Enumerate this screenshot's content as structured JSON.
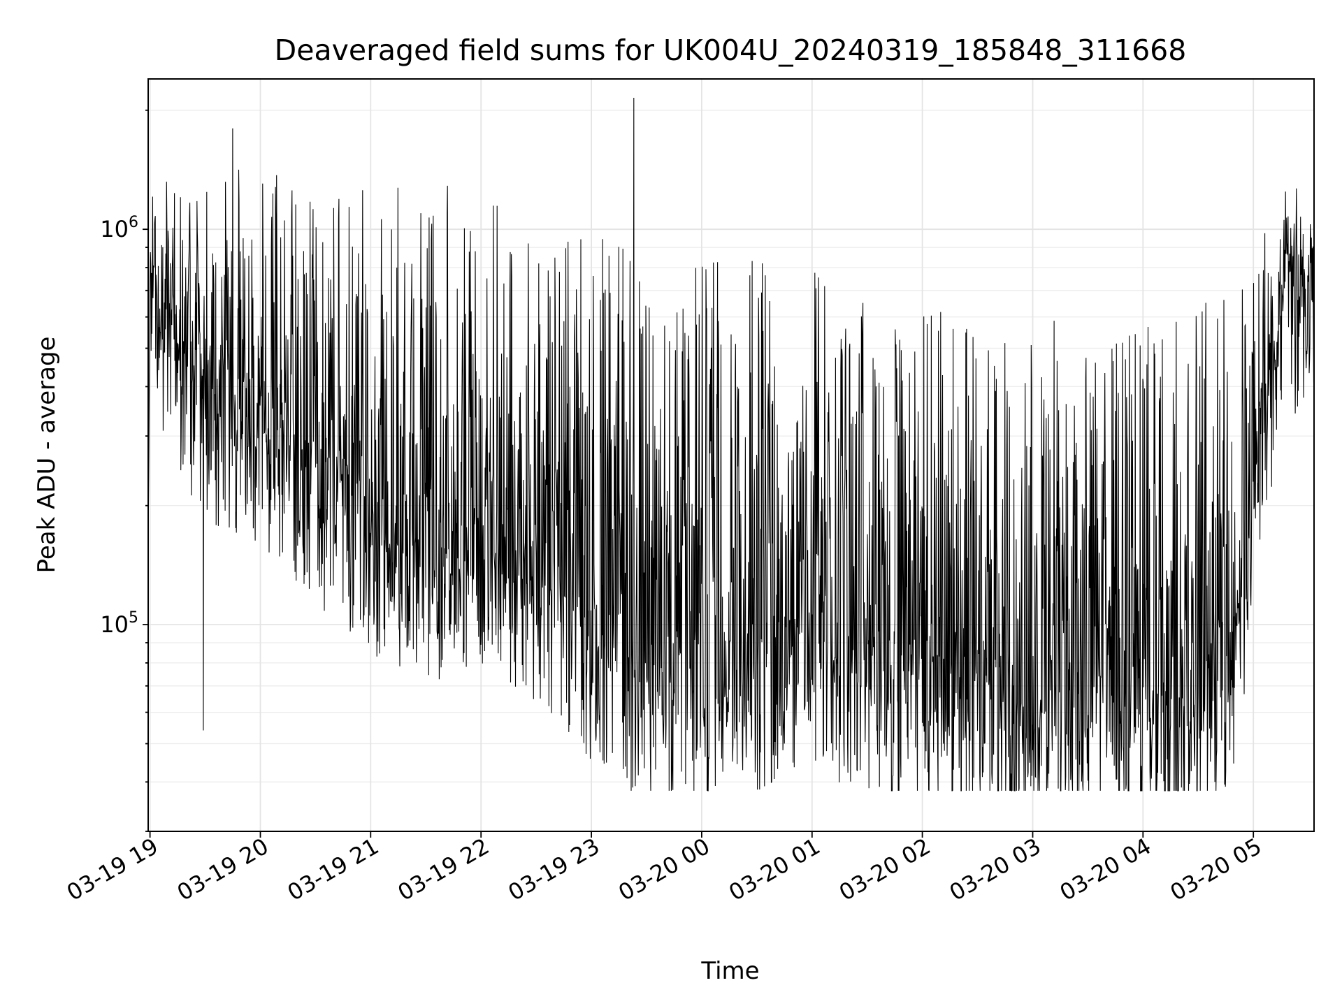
{
  "chart_data": {
    "type": "line",
    "title": "Deaveraged field sums for UK004U_20240319_185848_311668",
    "xlabel": "Time",
    "ylabel": "Peak ADU - average",
    "x_range": [
      "2024-03-19 18:59",
      "2024-03-20 05:33"
    ],
    "ylim": [
      30000,
      2400000
    ],
    "yscale": "log",
    "grid": true,
    "x_ticks": [
      {
        "label": "03-19 19",
        "time": "2024-03-19 19:00"
      },
      {
        "label": "03-19 20",
        "time": "2024-03-19 20:00"
      },
      {
        "label": "03-19 21",
        "time": "2024-03-19 21:00"
      },
      {
        "label": "03-19 22",
        "time": "2024-03-19 22:00"
      },
      {
        "label": "03-19 23",
        "time": "2024-03-19 23:00"
      },
      {
        "label": "03-20 00",
        "time": "2024-03-20 00:00"
      },
      {
        "label": "03-20 01",
        "time": "2024-03-20 01:00"
      },
      {
        "label": "03-20 02",
        "time": "2024-03-20 02:00"
      },
      {
        "label": "03-20 03",
        "time": "2024-03-20 03:00"
      },
      {
        "label": "03-20 04",
        "time": "2024-03-20 04:00"
      },
      {
        "label": "03-20 05",
        "time": "2024-03-20 05:00"
      }
    ],
    "y_ticks": [
      {
        "base": "10",
        "exp": "5",
        "value": 100000
      },
      {
        "base": "10",
        "exp": "6",
        "value": 1000000
      }
    ],
    "series_profile": [
      {
        "time": "2024-03-19 19:00",
        "base": 600000,
        "peak": 1300000
      },
      {
        "time": "2024-03-19 19:30",
        "base": 320000,
        "peak": 1200000
      },
      {
        "time": "2024-03-19 20:00",
        "base": 280000,
        "peak": 1200000
      },
      {
        "time": "2024-03-19 20:30",
        "base": 200000,
        "peak": 1100000
      },
      {
        "time": "2024-03-19 21:00",
        "base": 150000,
        "peak": 1150000
      },
      {
        "time": "2024-03-19 21:30",
        "base": 120000,
        "peak": 1100000
      },
      {
        "time": "2024-03-19 22:00",
        "base": 140000,
        "peak": 1100000
      },
      {
        "time": "2024-03-19 22:30",
        "base": 110000,
        "peak": 900000
      },
      {
        "time": "2024-03-19 23:00",
        "base": 80000,
        "peak": 850000
      },
      {
        "time": "2024-03-19 23:30",
        "base": 62000,
        "peak": 700000
      },
      {
        "time": "2024-03-20 00:00",
        "base": 62000,
        "peak": 700000
      },
      {
        "time": "2024-03-20 00:30",
        "base": 65000,
        "peak": 750000
      },
      {
        "time": "2024-03-20 01:00",
        "base": 80000,
        "peak": 700000
      },
      {
        "time": "2024-03-20 01:30",
        "base": 62000,
        "peak": 600000
      },
      {
        "time": "2024-03-20 02:00",
        "base": 55000,
        "peak": 550000
      },
      {
        "time": "2024-03-20 02:30",
        "base": 55000,
        "peak": 500000
      },
      {
        "time": "2024-03-20 03:00",
        "base": 52000,
        "peak": 500000
      },
      {
        "time": "2024-03-20 03:30",
        "base": 52000,
        "peak": 500000
      },
      {
        "time": "2024-03-20 04:00",
        "base": 52000,
        "peak": 500000
      },
      {
        "time": "2024-03-20 04:30",
        "base": 50000,
        "peak": 550000
      },
      {
        "time": "2024-03-20 04:50",
        "base": 75000,
        "peak": 600000
      },
      {
        "time": "2024-03-20 05:00",
        "base": 170000,
        "peak": 700000
      },
      {
        "time": "2024-03-20 05:15",
        "base": 600000,
        "peak": 1300000
      },
      {
        "time": "2024-03-20 05:33",
        "base": 600000,
        "peak": 1100000
      }
    ],
    "series_notable_values": [
      {
        "time": "2024-03-19 23:23",
        "value": 2150000
      },
      {
        "time": "2024-03-19 19:45",
        "value": 1800000
      },
      {
        "time": "2024-03-20 04:39",
        "value": 40000
      },
      {
        "time": "2024-03-19 23:35",
        "value": 43000
      },
      {
        "time": "2024-03-19 19:29",
        "value": 54000
      }
    ]
  }
}
